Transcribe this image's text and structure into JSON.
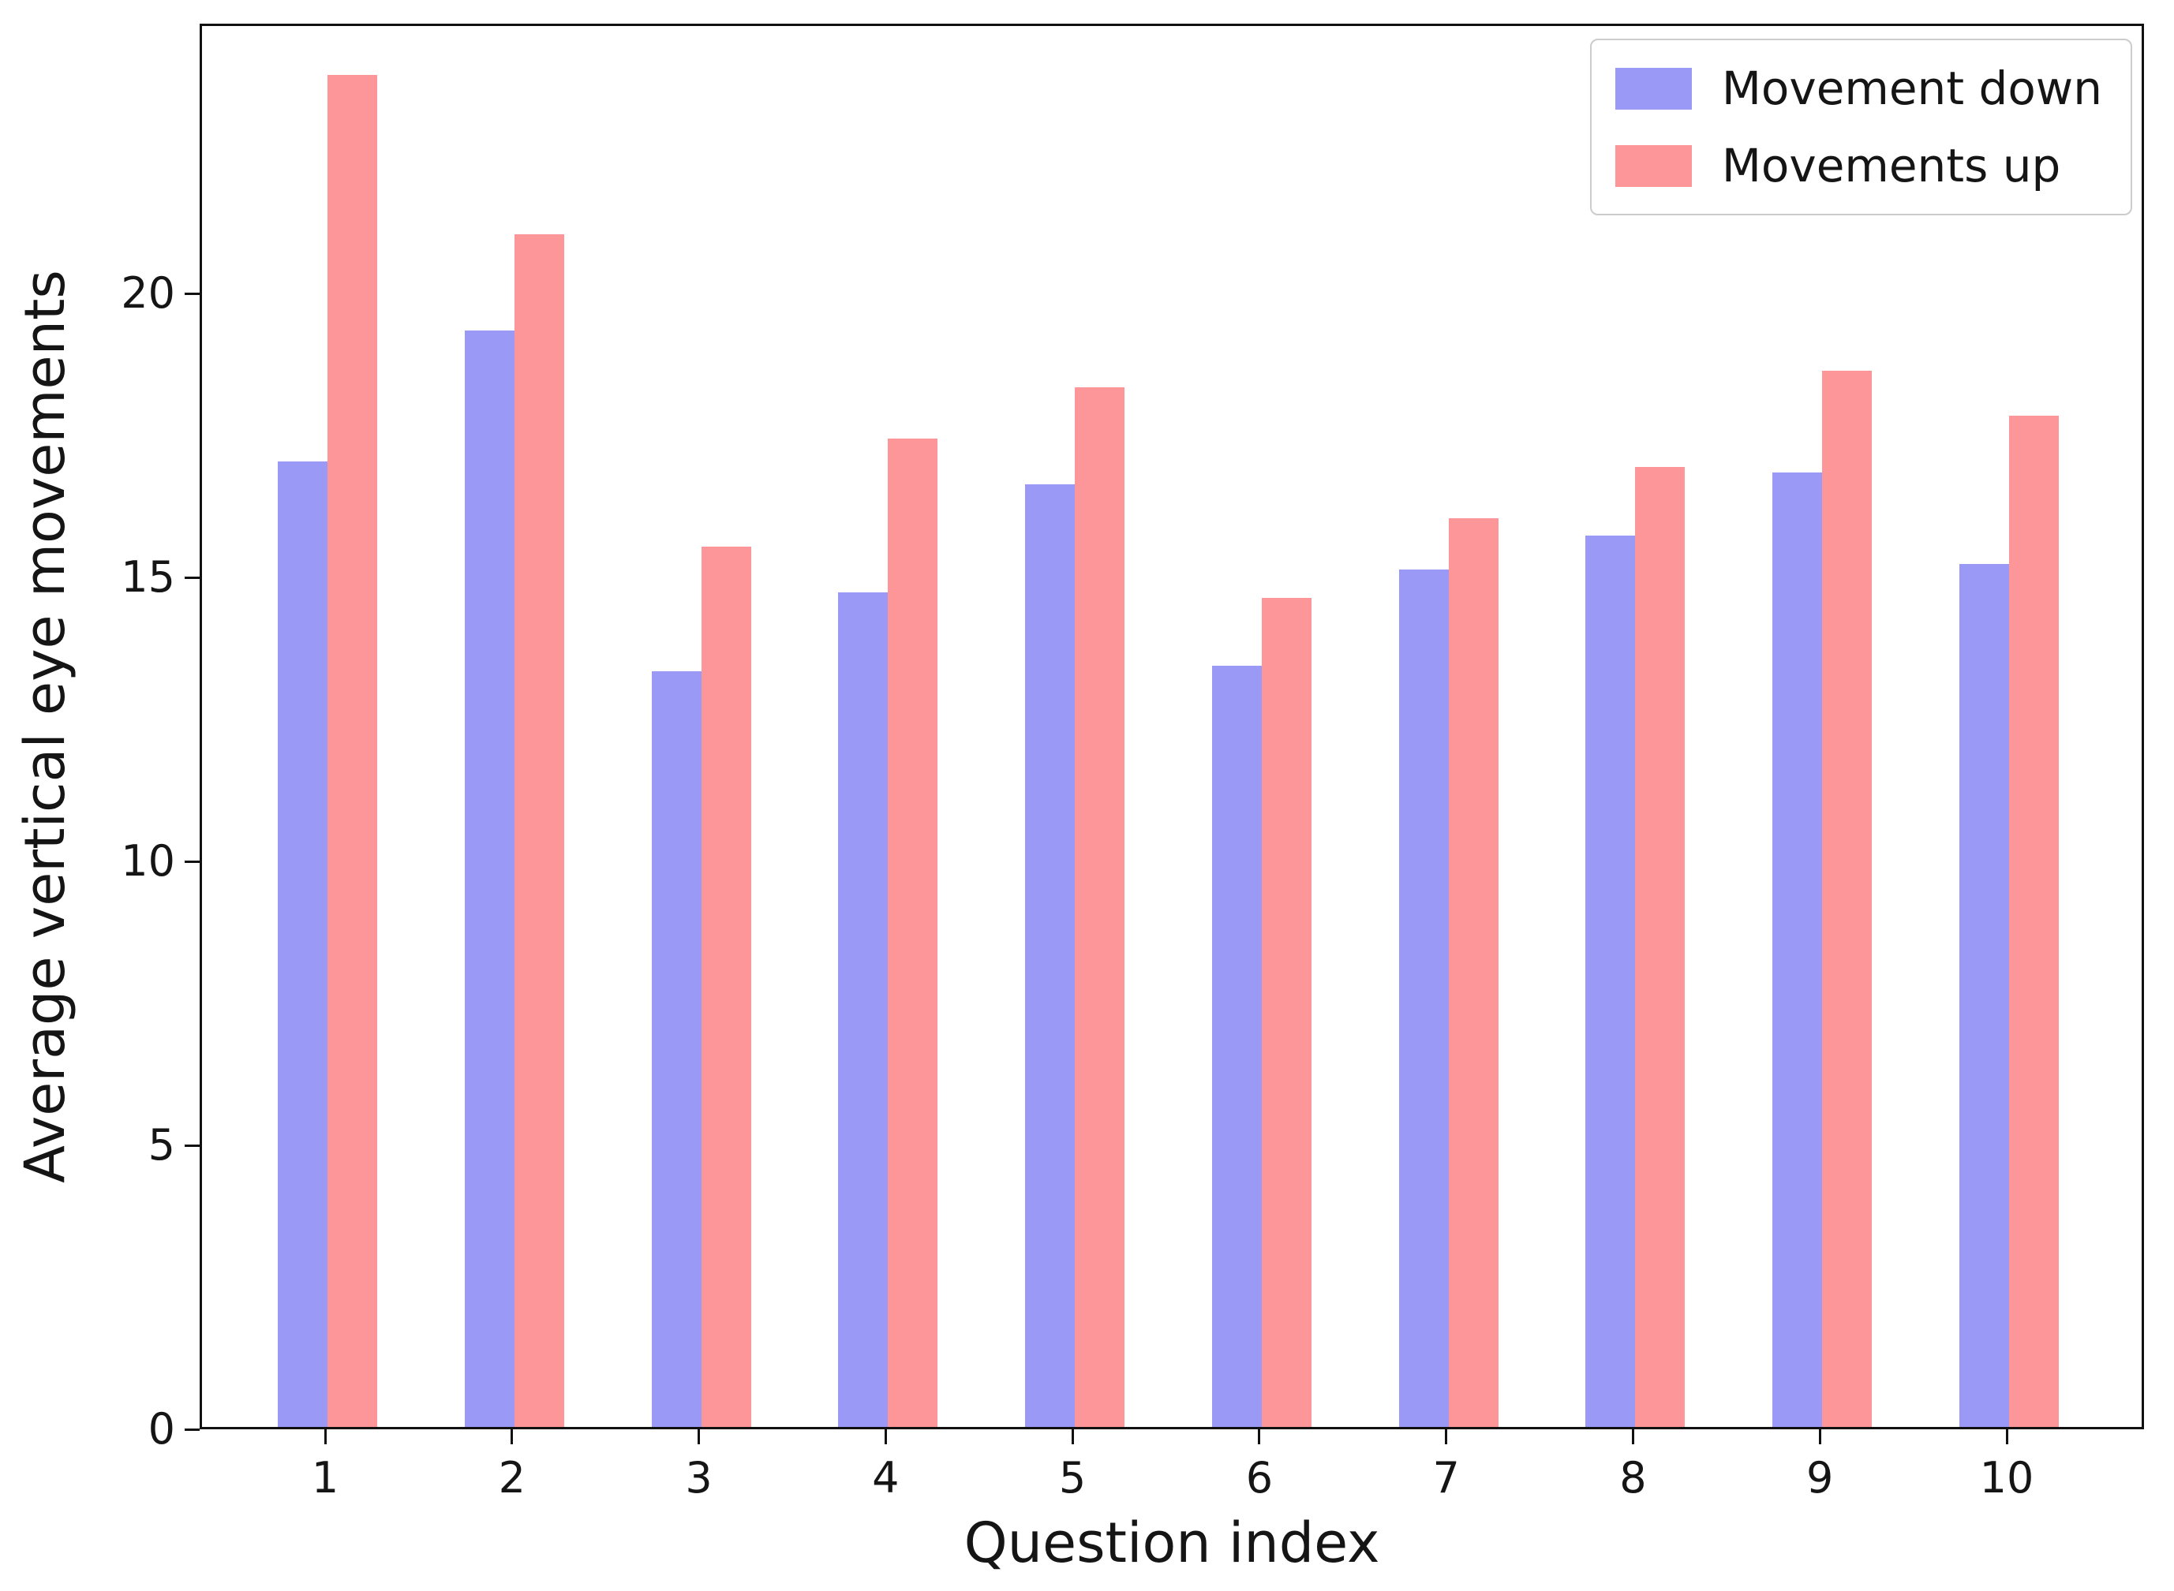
{
  "figure": {
    "background": "#ffffff",
    "text_color": "#151515",
    "spine_color": "#111111",
    "legend_border_color": "#cccccc"
  },
  "chart_data": {
    "type": "bar",
    "title": "",
    "xlabel": "Question index",
    "ylabel": "Average vertical eye movements",
    "categories": [
      "1",
      "2",
      "3",
      "4",
      "5",
      "6",
      "7",
      "8",
      "9",
      "10"
    ],
    "series": [
      {
        "name": "Movement down",
        "color": "#9b99f6",
        "values": [
          17.0,
          19.3,
          13.3,
          14.7,
          16.6,
          13.4,
          15.1,
          15.7,
          16.8,
          15.2
        ]
      },
      {
        "name": "Movements up",
        "color": "#fc9698",
        "values": [
          23.8,
          21.0,
          15.5,
          17.4,
          18.3,
          14.6,
          16.0,
          16.9,
          18.6,
          17.8
        ]
      }
    ],
    "ylim": [
      0,
      24.75
    ],
    "yticks": [
      0,
      5,
      10,
      15,
      20
    ],
    "xlim_note": "categorical, ticks 1-10",
    "grid": false,
    "legend_position": "upper right"
  }
}
